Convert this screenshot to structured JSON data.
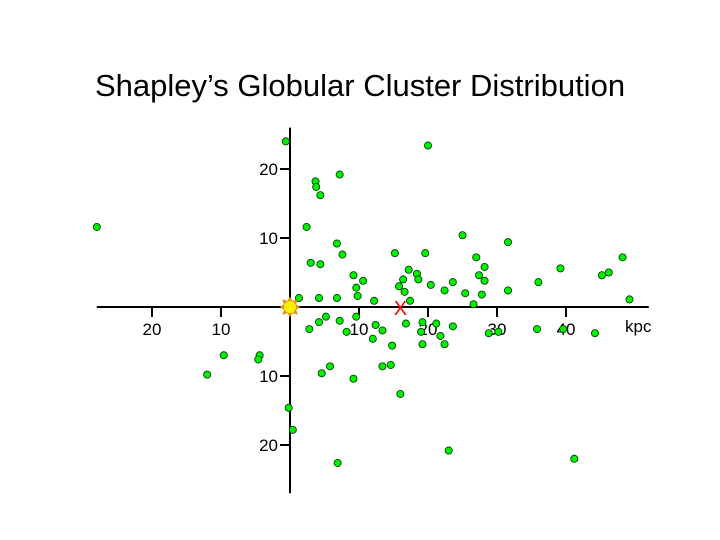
{
  "chart_data": {
    "type": "scatter",
    "title": "Shapley’s Globular Cluster Distribution",
    "x_unit_label": "kpc",
    "xlim": [
      -28,
      52
    ],
    "ylim": [
      -27,
      26
    ],
    "x_tick_labels": [
      {
        "value": -20,
        "label": "20"
      },
      {
        "value": -10,
        "label": "10"
      },
      {
        "value": 10,
        "label": "10"
      },
      {
        "value": 20,
        "label": "20"
      },
      {
        "value": 30,
        "label": "30"
      },
      {
        "value": 40,
        "label": "40"
      }
    ],
    "y_tick_labels": [
      {
        "value": 20,
        "label": "20"
      },
      {
        "value": 10,
        "label": "10"
      },
      {
        "value": -10,
        "label": "10"
      },
      {
        "value": -20,
        "label": "20"
      }
    ],
    "sun": {
      "x": 0,
      "y": 0,
      "color": "#ffee00"
    },
    "center_marker": {
      "x": 16,
      "y": 0,
      "label": "X",
      "color": "#ff0000"
    },
    "point_color": "#00ee00",
    "points": [
      {
        "x": -28,
        "y": 11.6
      },
      {
        "x": -0.6,
        "y": 24
      },
      {
        "x": 20,
        "y": 23.4
      },
      {
        "x": 7.2,
        "y": 19.2
      },
      {
        "x": 3.7,
        "y": 18.2
      },
      {
        "x": 3.8,
        "y": 17.4
      },
      {
        "x": 4.4,
        "y": 16.2
      },
      {
        "x": 2.4,
        "y": 11.6
      },
      {
        "x": 6.8,
        "y": 9.2
      },
      {
        "x": 7.6,
        "y": 7.6
      },
      {
        "x": 25,
        "y": 10.4
      },
      {
        "x": 31.6,
        "y": 9.4
      },
      {
        "x": 15.2,
        "y": 7.8
      },
      {
        "x": 19.6,
        "y": 7.8
      },
      {
        "x": 27,
        "y": 7.2
      },
      {
        "x": 3.0,
        "y": 6.4
      },
      {
        "x": 4.4,
        "y": 6.2
      },
      {
        "x": 17.2,
        "y": 5.4
      },
      {
        "x": 18.4,
        "y": 4.8
      },
      {
        "x": 28.2,
        "y": 5.8
      },
      {
        "x": 39.2,
        "y": 5.6
      },
      {
        "x": 46.2,
        "y": 5.0
      },
      {
        "x": 48.2,
        "y": 7.2
      },
      {
        "x": 45.2,
        "y": 4.6
      },
      {
        "x": 9.2,
        "y": 4.6
      },
      {
        "x": 10.6,
        "y": 3.8
      },
      {
        "x": 16.4,
        "y": 4.0
      },
      {
        "x": 18.6,
        "y": 4.0
      },
      {
        "x": 23.6,
        "y": 3.6
      },
      {
        "x": 27.4,
        "y": 4.6
      },
      {
        "x": 28.2,
        "y": 3.8
      },
      {
        "x": 36,
        "y": 3.6
      },
      {
        "x": 9.6,
        "y": 2.8
      },
      {
        "x": 15.8,
        "y": 3.0
      },
      {
        "x": 20.4,
        "y": 3.2
      },
      {
        "x": 16.6,
        "y": 2.2
      },
      {
        "x": 22.4,
        "y": 2.4
      },
      {
        "x": 25.4,
        "y": 2.0
      },
      {
        "x": 27.8,
        "y": 1.8
      },
      {
        "x": 31.6,
        "y": 2.4
      },
      {
        "x": 1.3,
        "y": 1.3
      },
      {
        "x": 4.2,
        "y": 1.3
      },
      {
        "x": 6.8,
        "y": 1.3
      },
      {
        "x": 9.8,
        "y": 1.6
      },
      {
        "x": 12.2,
        "y": 0.9
      },
      {
        "x": 17.4,
        "y": 0.9
      },
      {
        "x": 26.6,
        "y": 0.4
      },
      {
        "x": 49.2,
        "y": 1.1
      },
      {
        "x": 5.2,
        "y": -1.4
      },
      {
        "x": 9.6,
        "y": -1.4
      },
      {
        "x": 4.2,
        "y": -2.2
      },
      {
        "x": 7.2,
        "y": -2.0
      },
      {
        "x": 2.8,
        "y": -3.2
      },
      {
        "x": 8.2,
        "y": -3.6
      },
      {
        "x": 12.4,
        "y": -2.6
      },
      {
        "x": 16.8,
        "y": -2.4
      },
      {
        "x": 19.2,
        "y": -2.2
      },
      {
        "x": 21.2,
        "y": -2.4
      },
      {
        "x": 23.6,
        "y": -2.8
      },
      {
        "x": 13.4,
        "y": -3.4
      },
      {
        "x": 19.0,
        "y": -3.6
      },
      {
        "x": 21.8,
        "y": -4.2
      },
      {
        "x": 12.0,
        "y": -4.6
      },
      {
        "x": 14.8,
        "y": -5.6
      },
      {
        "x": 19.2,
        "y": -5.4
      },
      {
        "x": 22.4,
        "y": -5.4
      },
      {
        "x": 28.8,
        "y": -3.8
      },
      {
        "x": 30.2,
        "y": -3.6
      },
      {
        "x": 35.8,
        "y": -3.2
      },
      {
        "x": 39.6,
        "y": -3.2
      },
      {
        "x": 44.2,
        "y": -3.8
      },
      {
        "x": -4.4,
        "y": -7.0
      },
      {
        "x": -4.6,
        "y": -7.6
      },
      {
        "x": 5.8,
        "y": -8.6
      },
      {
        "x": 4.6,
        "y": -9.6
      },
      {
        "x": 13.4,
        "y": -8.6
      },
      {
        "x": 14.6,
        "y": -8.4
      },
      {
        "x": -12,
        "y": -9.8
      },
      {
        "x": -9.6,
        "y": -7.0
      },
      {
        "x": 9.2,
        "y": -10.4
      },
      {
        "x": 16.0,
        "y": -12.6
      },
      {
        "x": -0.2,
        "y": -14.6
      },
      {
        "x": 0.4,
        "y": -17.8
      },
      {
        "x": 23.0,
        "y": -20.8
      },
      {
        "x": 6.9,
        "y": -22.6
      },
      {
        "x": 41.2,
        "y": -22.0
      }
    ]
  }
}
